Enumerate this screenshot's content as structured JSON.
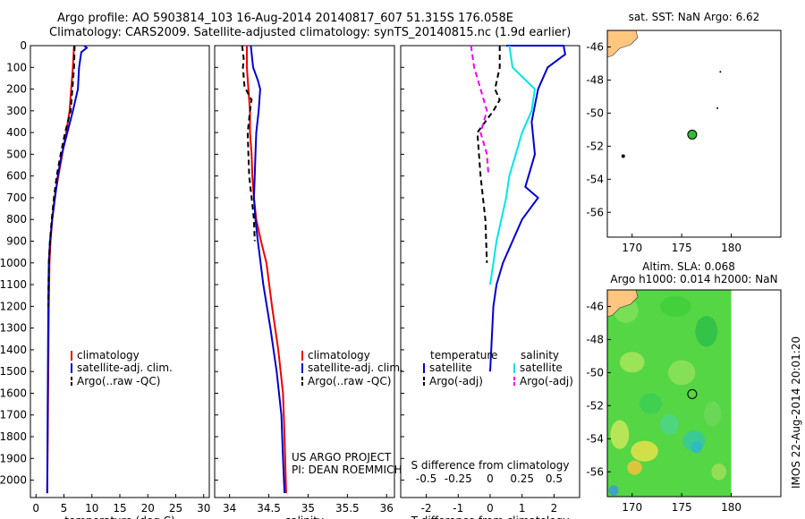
{
  "header": {
    "line1": "Argo profile: AO 5903814_103 16-Aug-2014 20140817_607 51.315S 176.058E",
    "line2": "Climatology: CARS2009. Satellite-adjusted climatology: synTS_20140815.nc (1.9d earlier)"
  },
  "colors": {
    "climatology": "#ee0000",
    "satellite": "#0000cc",
    "argo": "#000000",
    "sat_salinity": "#00e5e5",
    "argo_salinity": "#ee00ee",
    "land": "#ffc680",
    "float_marker": "#33bb33"
  },
  "chart_data": [
    {
      "id": "temperature",
      "type": "line",
      "xlabel": "temperature (deg C)",
      "ylim": [
        2080,
        0
      ],
      "yticks": [
        0,
        100,
        200,
        300,
        400,
        500,
        600,
        700,
        800,
        900,
        1000,
        1100,
        1200,
        1300,
        1400,
        1500,
        1600,
        1700,
        1800,
        1900,
        2000
      ],
      "xlim": [
        -1,
        31
      ],
      "xticks": [
        0,
        5,
        10,
        15,
        20,
        25,
        30
      ],
      "legend": [
        "climatology",
        "satellite-adj. clim.",
        "Argo(..raw -QC)"
      ],
      "series": [
        {
          "name": "climatology",
          "key": "climatology",
          "style": "solid",
          "x": [
            6.8,
            6.6,
            6.3,
            6.0,
            5.4,
            4.7,
            4.0,
            3.3,
            2.9,
            2.6,
            2.4,
            2.3,
            2.2,
            2.1,
            2.0
          ],
          "y": [
            0,
            100,
            200,
            300,
            400,
            500,
            600,
            700,
            800,
            900,
            1000,
            1200,
            1500,
            1800,
            2060
          ]
        },
        {
          "name": "satellite-adj. clim.",
          "key": "satellite",
          "style": "solid",
          "x": [
            8.6,
            9.1,
            8.1,
            7.7,
            7.5,
            6.6,
            5.6,
            4.6,
            3.9,
            3.4,
            2.9,
            2.5,
            2.3,
            2.2,
            2.1,
            2.0
          ],
          "y": [
            0,
            10,
            30,
            100,
            200,
            300,
            400,
            500,
            600,
            700,
            800,
            900,
            1000,
            1200,
            1600,
            2060
          ]
        },
        {
          "name": "Argo(..raw -QC)",
          "key": "argo",
          "style": "dash",
          "x": [
            6.9,
            6.8,
            6.5,
            6.2,
            5.2,
            4.4,
            3.7,
            3.2,
            2.8,
            2.5,
            2.3,
            2.2
          ],
          "y": [
            0,
            100,
            200,
            300,
            400,
            500,
            600,
            700,
            800,
            900,
            1000,
            1200
          ]
        }
      ]
    },
    {
      "id": "salinity",
      "type": "line",
      "xlabel": "salinity",
      "ylim": [
        2080,
        0
      ],
      "xlim": [
        33.81,
        36.1
      ],
      "xticks": [
        34,
        34.5,
        35,
        35.5,
        36
      ],
      "legend": [
        "climatology",
        "satellite-adj. clim.",
        "Argo(..raw -QC)"
      ],
      "annotation": [
        "US ARGO PROJECT",
        "PI: DEAN ROEMMICH"
      ],
      "series": [
        {
          "name": "climatology",
          "key": "climatology",
          "style": "solid",
          "x": [
            34.22,
            34.22,
            34.24,
            34.26,
            34.26,
            34.28,
            34.29,
            34.31,
            34.34,
            34.4,
            34.47,
            34.54,
            34.62,
            34.68,
            34.7,
            34.72
          ],
          "y": [
            0,
            100,
            200,
            300,
            400,
            500,
            600,
            700,
            800,
            900,
            1000,
            1200,
            1400,
            1600,
            1800,
            2060
          ]
        },
        {
          "name": "satellite-adj. clim.",
          "key": "satellite",
          "style": "solid",
          "x": [
            34.27,
            34.3,
            34.36,
            34.39,
            34.37,
            34.34,
            34.33,
            34.32,
            34.31,
            34.33,
            34.36,
            34.43,
            34.52,
            34.6,
            34.66,
            34.68,
            34.7
          ],
          "y": [
            0,
            100,
            160,
            200,
            300,
            400,
            500,
            600,
            700,
            800,
            900,
            1100,
            1300,
            1500,
            1700,
            1900,
            2060
          ]
        },
        {
          "name": "Argo(..raw -QC)",
          "key": "argo",
          "style": "dash",
          "x": [
            34.16,
            34.18,
            34.17,
            34.19,
            34.28,
            34.26,
            34.23,
            34.24,
            34.25,
            34.28,
            34.31,
            34.32
          ],
          "y": [
            0,
            60,
            100,
            190,
            250,
            300,
            400,
            500,
            600,
            700,
            800,
            900
          ]
        }
      ]
    },
    {
      "id": "difference",
      "type": "line",
      "xlabel": "T difference from climatology",
      "xlabel_top": "S difference from climatology",
      "ylim": [
        2080,
        0
      ],
      "xlim": [
        -2.8,
        2.8
      ],
      "xticks": [
        -2,
        -1,
        0,
        1,
        2
      ],
      "xticks_top": [
        -0.5,
        -0.25,
        0,
        0.25,
        0.5
      ],
      "xticks_top_labels": [
        "-0.5",
        "-0.25",
        "0",
        "0.25",
        "0.5"
      ],
      "legend_headers": [
        "temperature",
        "salinity"
      ],
      "legend": [
        "satellite",
        "Argo(-adj)",
        "satellite",
        "Argo(-adj)"
      ],
      "series": [
        {
          "name": "temperature satellite",
          "key": "satellite",
          "style": "solid",
          "x": [
            0.5,
            2.3,
            2.35,
            1.8,
            1.5,
            1.3,
            1.4,
            1.2,
            1.1,
            1.5,
            1.0,
            0.7,
            0.4,
            0.2,
            0.1,
            0.0
          ],
          "y": [
            0,
            0,
            40,
            100,
            200,
            350,
            500,
            600,
            650,
            700,
            800,
            900,
            1000,
            1100,
            1200,
            1500
          ]
        },
        {
          "name": "temperature Argo(-adj)",
          "key": "argo",
          "style": "dash",
          "x": [
            0.3,
            0.3,
            0.15,
            0.3,
            0.1,
            -0.4,
            -0.3,
            -0.15,
            -0.1
          ],
          "y": [
            0,
            100,
            200,
            250,
            300,
            400,
            600,
            800,
            1000
          ]
        },
        {
          "name": "salinity satellite",
          "key": "sat_salinity",
          "style": "solid",
          "x": [
            0.6,
            0.7,
            1.4,
            1.3,
            1.0,
            0.8,
            0.6,
            0.5,
            0.2,
            0.0
          ],
          "y": [
            0,
            100,
            200,
            300,
            400,
            500,
            600,
            700,
            900,
            1100
          ]
        },
        {
          "name": "salinity Argo(-adj)",
          "key": "argo_salinity",
          "style": "dash",
          "x": [
            -0.6,
            -0.5,
            -0.3,
            -0.1,
            -0.3,
            -0.1,
            -0.05
          ],
          "y": [
            0,
            100,
            200,
            300,
            400,
            500,
            600
          ]
        }
      ]
    },
    {
      "id": "sst_map",
      "type": "scatter",
      "title": "sat. SST: NaN Argo: 6.62",
      "xlim": [
        167.5,
        185
      ],
      "ylim": [
        -57.5,
        -45
      ],
      "xticks": [
        170,
        175,
        180
      ],
      "yticks": [
        -46,
        -48,
        -50,
        -52,
        -54,
        -56
      ],
      "points": [
        {
          "x": 176.06,
          "y": -51.3,
          "type": "float"
        },
        {
          "x": 169.1,
          "y": -52.6,
          "type": "dot"
        },
        {
          "x": 178.6,
          "y": -49.7,
          "type": "dot"
        },
        {
          "x": 178.9,
          "y": -47.5,
          "type": "dot"
        }
      ]
    },
    {
      "id": "sla_map",
      "type": "heatmap",
      "title": "Altim. SLA: 0.068",
      "subtitle": "Argo h1000: 0.014 h2000: NaN",
      "xlim": [
        167.5,
        185
      ],
      "ylim": [
        -57.5,
        -45
      ],
      "xticks": [
        170,
        175,
        180
      ],
      "yticks": [
        -46,
        -48,
        -50,
        -52,
        -54,
        -56
      ],
      "points": [
        {
          "x": 176.06,
          "y": -51.3,
          "type": "float"
        }
      ]
    }
  ],
  "footer": {
    "timestamp": "IMOS 22-Aug-2014 20:01:20"
  }
}
